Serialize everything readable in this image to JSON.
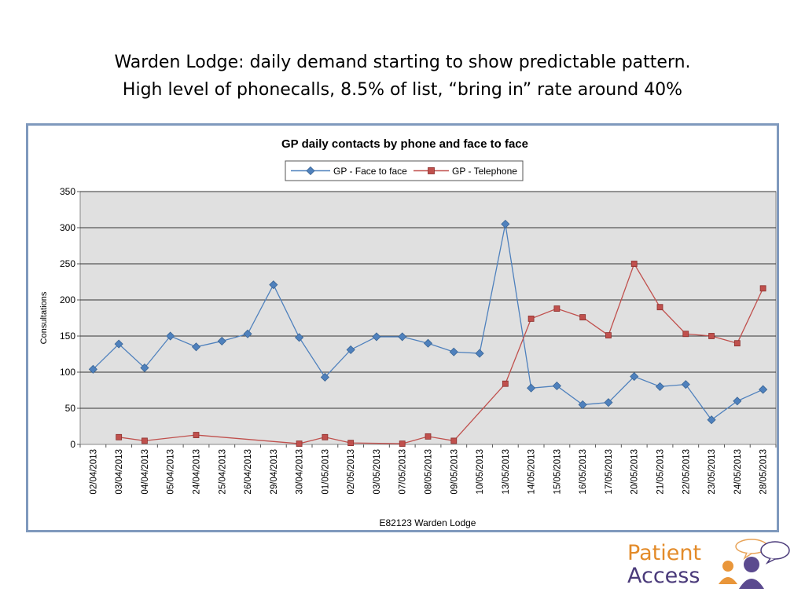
{
  "slide": {
    "title_line1": "Warden Lodge:  daily demand starting to show predictable pattern.",
    "title_line2": "High level of phonecalls, 8.5% of list, “bring in” rate around 40%"
  },
  "logo": {
    "line1": "Patient",
    "line2": "Access",
    "icon": "people-speech-bubbles-icon"
  },
  "chart_data": {
    "type": "line",
    "title": "GP daily contacts by phone and face to face",
    "xlabel": "E82123 Warden Lodge",
    "ylabel": "Consultations",
    "ylim": [
      0,
      350
    ],
    "yticks": [
      0,
      50,
      100,
      150,
      200,
      250,
      300,
      350
    ],
    "grid": true,
    "legend_position": "top",
    "categories": [
      "02/04/2013",
      "03/04/2013",
      "04/04/2013",
      "05/04/2013",
      "24/04/2013",
      "25/04/2013",
      "26/04/2013",
      "29/04/2013",
      "30/04/2013",
      "01/05/2013",
      "02/05/2013",
      "03/05/2013",
      "07/05/2013",
      "08/05/2013",
      "09/05/2013",
      "10/05/2013",
      "13/05/2013",
      "14/05/2013",
      "15/05/2013",
      "16/05/2013",
      "17/05/2013",
      "20/05/2013",
      "21/05/2013",
      "22/05/2013",
      "23/05/2013",
      "24/05/2013",
      "28/05/2013"
    ],
    "series": [
      {
        "name": "GP - Face to face",
        "color": "#4f81bd",
        "marker": "diamond",
        "values": [
          104,
          139,
          106,
          150,
          135,
          143,
          153,
          221,
          148,
          93,
          131,
          149,
          149,
          140,
          128,
          126,
          305,
          78,
          81,
          55,
          58,
          94,
          80,
          83,
          34,
          60,
          76
        ]
      },
      {
        "name": "GP - Telephone",
        "color": "#c0504d",
        "marker": "square",
        "values": [
          null,
          10,
          5,
          null,
          13,
          null,
          null,
          null,
          1,
          10,
          2,
          null,
          1,
          11,
          5,
          null,
          84,
          174,
          188,
          176,
          151,
          250,
          190,
          153,
          150,
          140,
          216
        ]
      }
    ]
  }
}
